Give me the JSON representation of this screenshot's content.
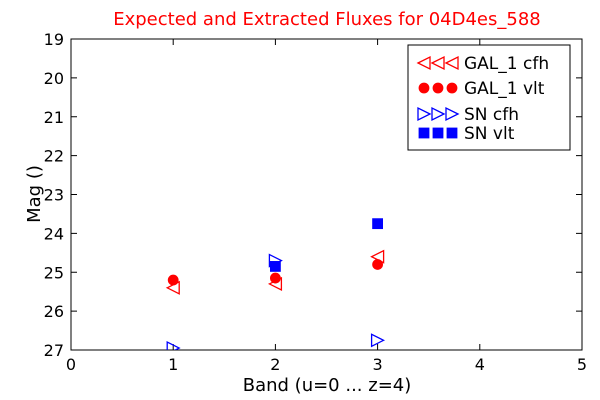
{
  "chart_data": {
    "type": "scatter",
    "title": "Expected and Extracted Fluxes for 04D4es_588",
    "title_color": "#ff0000",
    "xlabel": "Band (u=0 ... z=4)",
    "ylabel": "Mag ()",
    "xlim": [
      0,
      5
    ],
    "ylim": [
      27,
      19
    ],
    "y_inverted": true,
    "x_ticks": [
      "0",
      "1",
      "2",
      "3",
      "4",
      "5"
    ],
    "y_ticks": [
      "19",
      "20",
      "21",
      "22",
      "23",
      "24",
      "25",
      "26",
      "27"
    ],
    "grid": false,
    "legend_position": "top-right",
    "series": [
      {
        "name": "GAL_1 cfh",
        "marker": "triangle-left-open",
        "color": "#ff0000",
        "x": [
          1,
          2,
          3
        ],
        "y": [
          25.4,
          25.3,
          24.6
        ]
      },
      {
        "name": "GAL_1 vlt",
        "marker": "circle-filled",
        "color": "#ff0000",
        "x": [
          1,
          2,
          3
        ],
        "y": [
          25.2,
          25.15,
          24.8
        ]
      },
      {
        "name": "SN cfh",
        "marker": "triangle-right-open",
        "color": "#0000ff",
        "x": [
          1,
          2,
          3
        ],
        "y": [
          26.95,
          24.7,
          26.75
        ]
      },
      {
        "name": "SN vlt",
        "marker": "square-filled",
        "color": "#0000ff",
        "x": [
          2,
          3
        ],
        "y": [
          24.85,
          23.75
        ]
      }
    ]
  }
}
